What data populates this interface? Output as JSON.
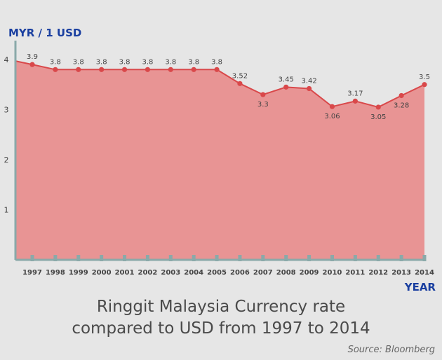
{
  "chart_data": {
    "type": "area",
    "title": "Ringgit Malaysia Currency rate compared to USD from 1997 to 2014",
    "title_lines": [
      "Ringgit Malaysia Currency rate",
      "compared to USD from 1997 to 2014"
    ],
    "ylabel": "MYR / 1 USD",
    "xlabel": "YEAR",
    "source": "Source: Bloomberg",
    "categories": [
      "1997",
      "1998",
      "1999",
      "2000",
      "2001",
      "2002",
      "2003",
      "2004",
      "2005",
      "2006",
      "2007",
      "2008",
      "2009",
      "2010",
      "2011",
      "2012",
      "2013",
      "2014"
    ],
    "values": [
      3.9,
      3.8,
      3.8,
      3.8,
      3.8,
      3.8,
      3.8,
      3.8,
      3.8,
      3.52,
      3.3,
      3.45,
      3.42,
      3.06,
      3.17,
      3.05,
      3.28,
      3.5
    ],
    "data_labels": [
      "3.9",
      "3.8",
      "3.8",
      "3.8",
      "3.8",
      "3.8",
      "3.8",
      "3.8",
      "3.8",
      "3.52",
      "3.3",
      "3.45",
      "3.42",
      "3.06",
      "3.17",
      "3.05",
      "3.28",
      "3.5"
    ],
    "yticks": [
      "1",
      "2",
      "3",
      "4"
    ],
    "ylim": [
      0,
      4.4
    ],
    "grid": false,
    "colors": {
      "area": "#e89494",
      "line": "#d9484a",
      "axis": "#8aa9a9",
      "axis_title": "#1a3fa0",
      "background": "#e6e6e6"
    }
  }
}
